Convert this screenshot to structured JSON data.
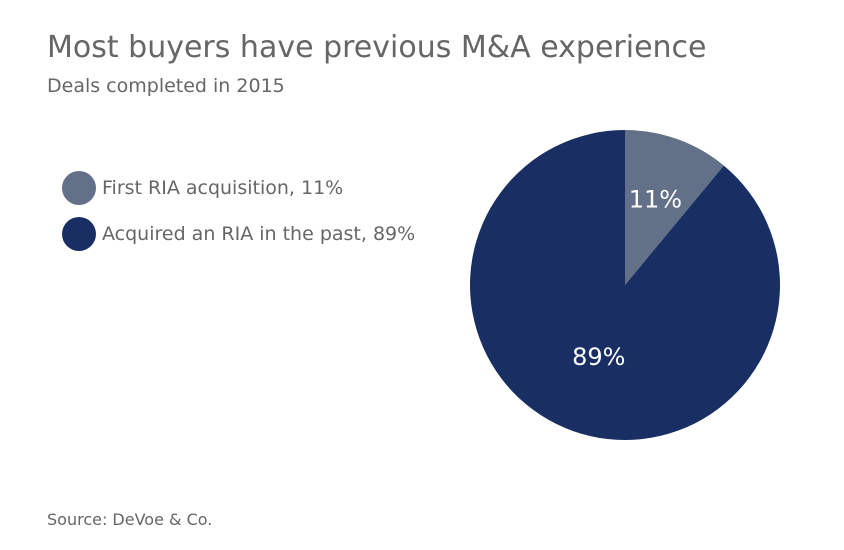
{
  "chart_data": {
    "type": "pie",
    "title": "Most buyers have previous M&A experience",
    "subtitle": "Deals completed in 2015",
    "categories": [
      "First RIA acquisition",
      "Acquired an RIA in the past"
    ],
    "values": [
      11,
      89
    ],
    "data_labels": [
      "11%",
      "89%"
    ],
    "legend": {
      "placement": "left",
      "entries": [
        "First RIA acquisition, 11%",
        "Acquired an RIA in the past, 89%"
      ]
    },
    "colors": [
      "#627088",
      "#192f63"
    ],
    "source": "Source: DeVoe & Co."
  }
}
